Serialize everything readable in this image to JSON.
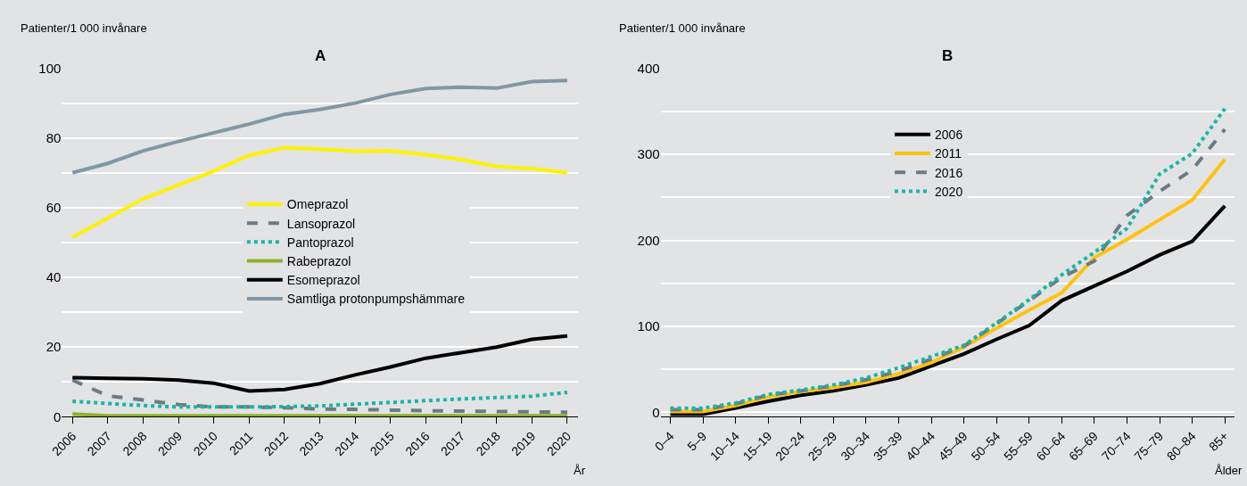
{
  "chart_data": [
    {
      "type": "line",
      "title": "A",
      "ylabel": "Patienter/1 000 invånare",
      "xlabel": "År",
      "categories": [
        "2006",
        "2007",
        "2008",
        "2009",
        "2010",
        "2011",
        "2012",
        "2013",
        "2014",
        "2015",
        "2016",
        "2017",
        "2018",
        "2019",
        "2020"
      ],
      "ylim": [
        0,
        100
      ],
      "yticks": [
        0,
        {
          "value": 10,
          "label": null
        },
        20,
        {
          "value": 30,
          "label": null
        },
        40,
        {
          "value": 50,
          "label": null
        },
        60,
        {
          "value": 70,
          "label": null
        },
        80,
        {
          "value": 90,
          "label": null
        },
        100
      ],
      "grid": "y",
      "legend": "center",
      "marker": "none",
      "series": [
        {
          "name": "Omeprazol",
          "color": "#fff200",
          "line_style": "solid",
          "values": [
            51.5,
            57,
            62.5,
            66.5,
            70.5,
            75,
            77.2,
            76.8,
            76.2,
            76.3,
            75.2,
            73.8,
            71.8,
            71.2,
            70
          ]
        },
        {
          "name": "Lansoprazol",
          "color": "#6b7b86",
          "line_style": "dashed",
          "values": [
            10.5,
            6,
            4.8,
            3.5,
            2.8,
            2.8,
            2.6,
            2.2,
            2.1,
            1.9,
            1.7,
            1.6,
            1.5,
            1.4,
            1.3
          ]
        },
        {
          "name": "Pantoprazol",
          "color": "#1ab5a5",
          "line_style": "dotted",
          "values": [
            4.4,
            3.8,
            3.2,
            2.8,
            2.8,
            2.8,
            2.9,
            3.1,
            3.6,
            4.1,
            4.6,
            5.1,
            5.5,
            5.9,
            7
          ]
        },
        {
          "name": "Rabeprazol",
          "color": "#8db12b",
          "line_style": "solid",
          "values": [
            0.8,
            0.3,
            0.3,
            0.3,
            0.3,
            0.3,
            0.3,
            0.3,
            0.3,
            0.3,
            0.3,
            0.3,
            0.3,
            0.3,
            0.3
          ]
        },
        {
          "name": "Esomeprazol",
          "color": "#000000",
          "line_style": "solid",
          "values": [
            11.2,
            11,
            10.9,
            10.5,
            9.6,
            7.4,
            7.8,
            9.5,
            12,
            14.3,
            16.8,
            18.4,
            20,
            22.2,
            23.2
          ]
        },
        {
          "name": "Samtliga protonpumpshämmare",
          "color": "#7f98a4",
          "line_style": "solid",
          "values": [
            70,
            72.7,
            76.3,
            79,
            81.5,
            84,
            86.8,
            88.2,
            90,
            92.5,
            94.2,
            94.6,
            94.3,
            96.2,
            96.5
          ]
        }
      ]
    },
    {
      "type": "line",
      "title": "B",
      "ylabel": "Patienter/1 000 invånare",
      "xlabel": "Ålder",
      "categories": [
        "0–4",
        "5–9",
        "10–14",
        "15–19",
        "20–24",
        "25–29",
        "30–34",
        "35–39",
        "40–44",
        "45–49",
        "50–54",
        "55–59",
        "60–64",
        "65–69",
        "70–74",
        "75–79",
        "80–84",
        "85+"
      ],
      "ylim": [
        -5,
        400
      ],
      "yticks": [
        0,
        {
          "value": 50,
          "label": null
        },
        100,
        {
          "value": 150,
          "label": null
        },
        200,
        {
          "value": 250,
          "label": null
        },
        300,
        {
          "value": 350,
          "label": null
        },
        400
      ],
      "grid": "y",
      "legend": "top",
      "marker": "none",
      "series": [
        {
          "name": "2006",
          "color": "#000000",
          "line_style": "solid",
          "values": [
            -2,
            -2,
            5,
            13,
            20,
            25,
            32,
            40,
            54,
            68,
            85,
            101,
            130,
            147,
            164,
            183,
            199,
            240
          ]
        },
        {
          "name": "2011",
          "color": "#ffc20e",
          "line_style": "solid",
          "values": [
            1,
            1,
            8,
            18,
            24,
            29,
            35,
            45,
            58,
            76,
            98,
            119,
            139,
            180,
            201,
            224,
            247,
            294
          ]
        },
        {
          "name": "2016",
          "color": "#6b7b86",
          "line_style": "dashed",
          "values": [
            3,
            3,
            10,
            20,
            25,
            31,
            38,
            48,
            62,
            77,
            103,
            130,
            157,
            176,
            229,
            257,
            282,
            329
          ]
        },
        {
          "name": "2020",
          "color": "#1ab5a5",
          "line_style": "dotted",
          "values": [
            5,
            5,
            11,
            21,
            26,
            32,
            40,
            52,
            65,
            78,
            104,
            131,
            160,
            186,
            214,
            277,
            301,
            353
          ]
        }
      ]
    }
  ]
}
